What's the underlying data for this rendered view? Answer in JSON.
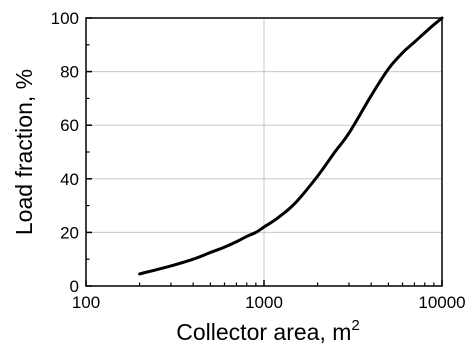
{
  "chart_data": {
    "type": "line",
    "title": "",
    "xlabel": "Collector area, m",
    "xlabel_superscript": "2",
    "ylabel": "Load fraction, %",
    "x_scale": "log",
    "xlim": [
      100,
      10000
    ],
    "ylim": [
      0,
      100
    ],
    "x_ticks": [
      100,
      1000,
      10000
    ],
    "x_tick_labels": [
      "100",
      "1000",
      "10000"
    ],
    "y_ticks": [
      0,
      20,
      40,
      60,
      80,
      100
    ],
    "y_tick_labels": [
      "0",
      "20",
      "40",
      "60",
      "80",
      "100"
    ],
    "grid": true,
    "legend": "none",
    "colors": {
      "line": "#000000",
      "grid": "#c8c8c8",
      "axes": "#000000"
    },
    "series": [
      {
        "x": [
          200,
          300,
          400,
          500,
          600,
          700,
          800,
          900,
          1000,
          1200,
          1500,
          2000,
          2500,
          3000,
          4000,
          5000,
          6000,
          7000,
          8000,
          9000,
          10000
        ],
        "y": [
          4.5,
          7.5,
          10,
          12.5,
          14.5,
          16.5,
          18.5,
          20,
          22,
          25.5,
          31,
          41,
          50,
          57,
          71,
          81,
          87,
          91,
          94.5,
          97.5,
          100
        ]
      }
    ]
  }
}
